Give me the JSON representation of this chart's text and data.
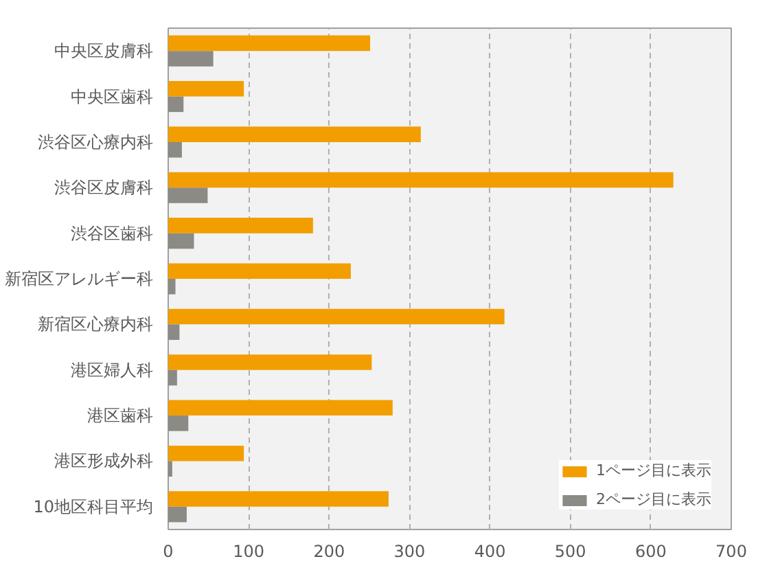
{
  "chart_data": {
    "type": "bar",
    "orientation": "horizontal",
    "categories": [
      "中央区皮膚科",
      "中央区歯科",
      "渋谷区心療内科",
      "渋谷区皮膚科",
      "渋谷区歯科",
      "新宿区アレルギー科",
      "新宿区心療内科",
      "港区婦人科",
      "港区歯科",
      "港区形成外科",
      "10地区科目平均"
    ],
    "series": [
      {
        "name": "1ページ目に表示",
        "color": "#f29e00",
        "values": [
          251,
          94,
          314,
          628,
          180,
          227,
          418,
          253,
          279,
          94,
          274
        ]
      },
      {
        "name": "2ページ目に表示",
        "color": "#8c8a84",
        "values": [
          56,
          19,
          17,
          49,
          32,
          9,
          14,
          11,
          25,
          5,
          23
        ]
      }
    ],
    "xlim": [
      0,
      700
    ],
    "xticks": [
      0,
      100,
      200,
      300,
      400,
      500,
      600,
      700
    ],
    "grid": "x",
    "legend": "bottom right"
  }
}
